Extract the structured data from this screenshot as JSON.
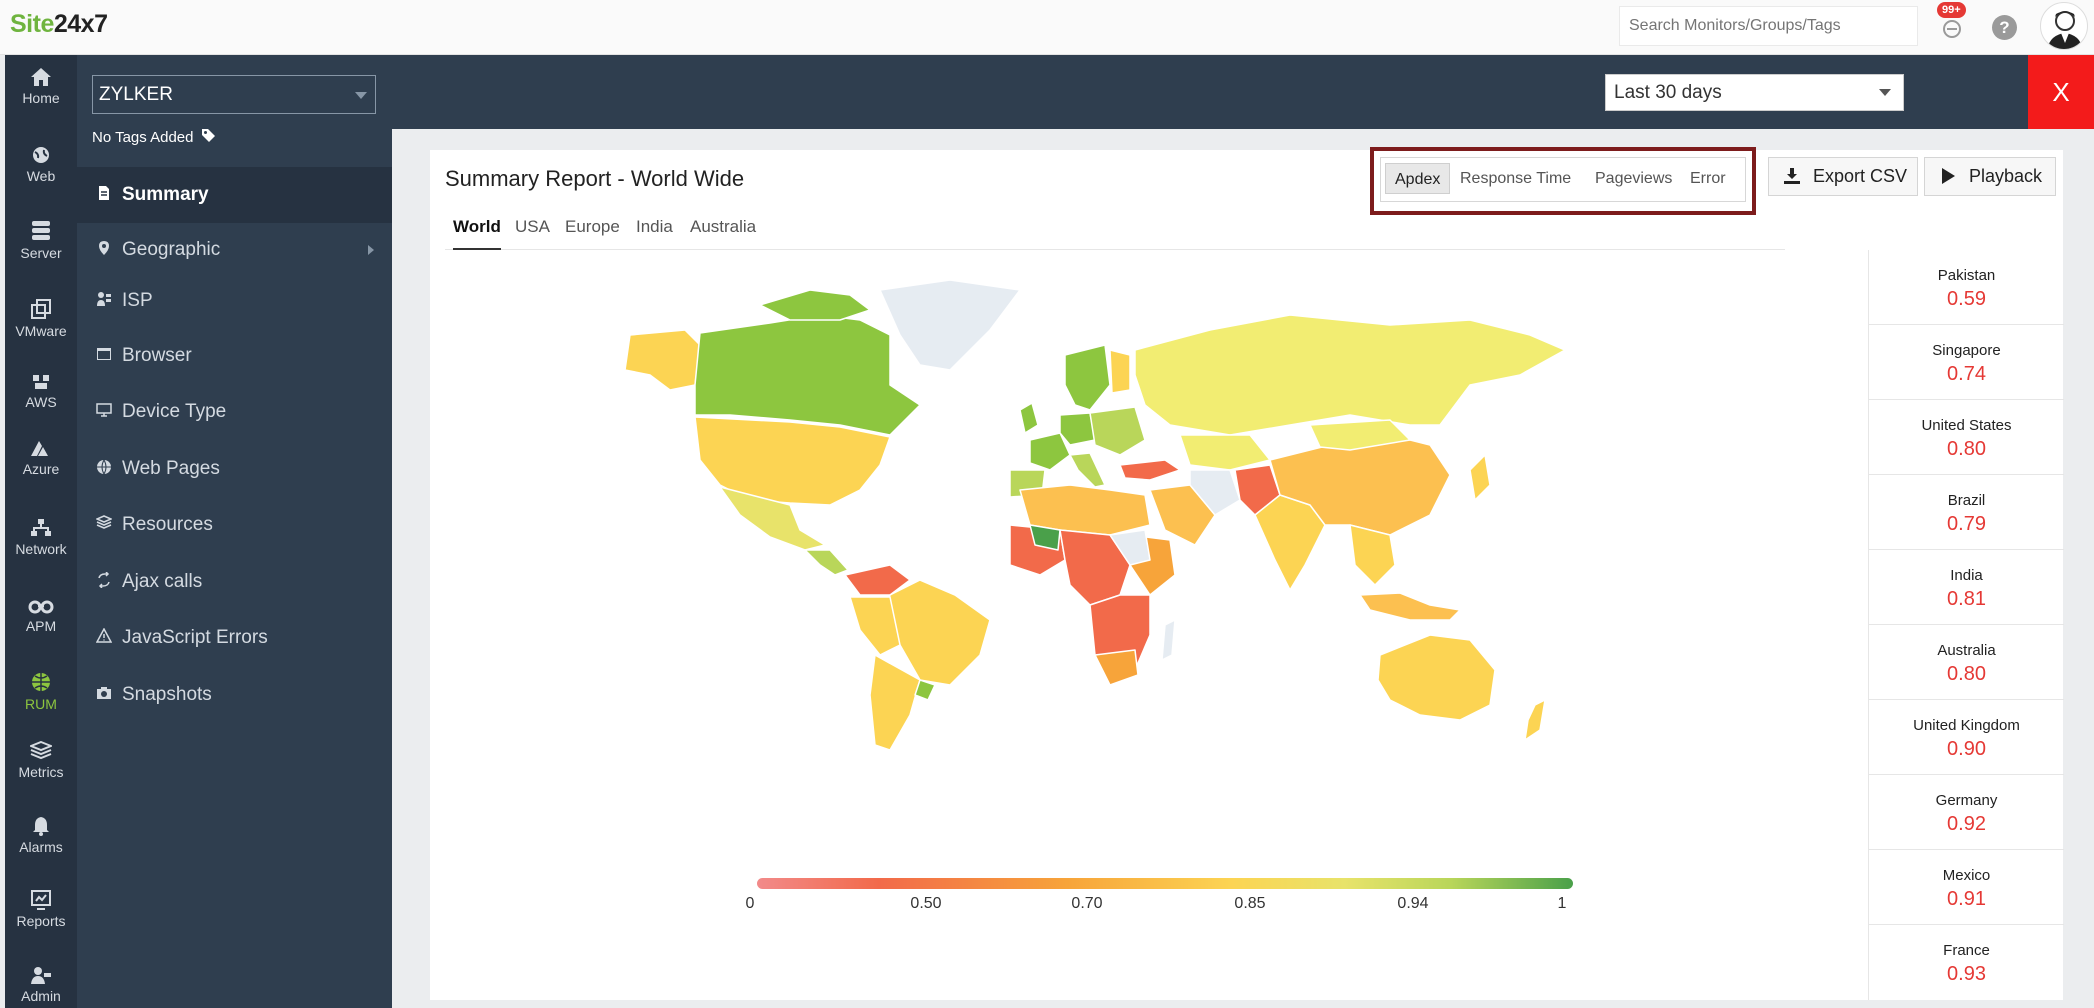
{
  "app": {
    "logo_part1": "Site",
    "logo_part2": "24x7"
  },
  "topbar": {
    "search_placeholder": "Search Monitors/Groups/Tags",
    "notification_count": "99+",
    "help_label": "?"
  },
  "nav": {
    "items": [
      {
        "label": "Home",
        "icon": "home-icon"
      },
      {
        "label": "Web",
        "icon": "globe-icon"
      },
      {
        "label": "Server",
        "icon": "server-icon"
      },
      {
        "label": "VMware",
        "icon": "vmware-icon"
      },
      {
        "label": "AWS",
        "icon": "aws-icon"
      },
      {
        "label": "Azure",
        "icon": "azure-icon"
      },
      {
        "label": "Network",
        "icon": "network-icon"
      },
      {
        "label": "APM",
        "icon": "apm-icon"
      },
      {
        "label": "RUM",
        "icon": "rum-icon"
      },
      {
        "label": "Metrics",
        "icon": "metrics-icon"
      },
      {
        "label": "Alarms",
        "icon": "bell-icon"
      },
      {
        "label": "Reports",
        "icon": "reports-icon"
      },
      {
        "label": "Admin",
        "icon": "admin-icon"
      }
    ],
    "active": "RUM"
  },
  "sidebar": {
    "monitor": "ZYLKER",
    "tags_label": "No Tags Added",
    "menu": [
      {
        "label": "Summary",
        "icon": "document-icon"
      },
      {
        "label": "Geographic",
        "icon": "location-pin-icon"
      },
      {
        "label": "ISP",
        "icon": "isp-icon"
      },
      {
        "label": "Browser",
        "icon": "browser-icon"
      },
      {
        "label": "Device Type",
        "icon": "monitor-icon"
      },
      {
        "label": "Web Pages",
        "icon": "web-pages-icon"
      },
      {
        "label": "Resources",
        "icon": "layers-icon"
      },
      {
        "label": "Ajax calls",
        "icon": "ajax-icon"
      },
      {
        "label": "JavaScript Errors",
        "icon": "warning-icon"
      },
      {
        "label": "Snapshots",
        "icon": "camera-icon"
      }
    ]
  },
  "header": {
    "time_range": "Last 30 days",
    "close_label": "X"
  },
  "report": {
    "title": "Summary Report - World Wide",
    "geo_tabs": [
      "World",
      "USA",
      "Europe",
      "India",
      "Australia"
    ],
    "metric_tabs": [
      "Apdex",
      "Response Time",
      "Pageviews",
      "Error"
    ],
    "export_label": "Export CSV",
    "playback_label": "Playback"
  },
  "legend": {
    "labels": [
      "0",
      "0.50",
      "0.70",
      "0.85",
      "0.94",
      "1"
    ]
  },
  "countries": [
    {
      "name": "Pakistan",
      "value": "0.59"
    },
    {
      "name": "Singapore",
      "value": "0.74"
    },
    {
      "name": "United States",
      "value": "0.80"
    },
    {
      "name": "Brazil",
      "value": "0.79"
    },
    {
      "name": "India",
      "value": "0.81"
    },
    {
      "name": "Australia",
      "value": "0.80"
    },
    {
      "name": "United Kingdom",
      "value": "0.90"
    },
    {
      "name": "Germany",
      "value": "0.92"
    },
    {
      "name": "Mexico",
      "value": "0.91"
    },
    {
      "name": "France",
      "value": "0.93"
    }
  ],
  "colors": {
    "accent_green": "#8dc63f",
    "sidebar_bg": "#2f3e4f",
    "nav_bg": "#263241",
    "close_red": "#f31b1b",
    "value_red": "#e53935"
  }
}
